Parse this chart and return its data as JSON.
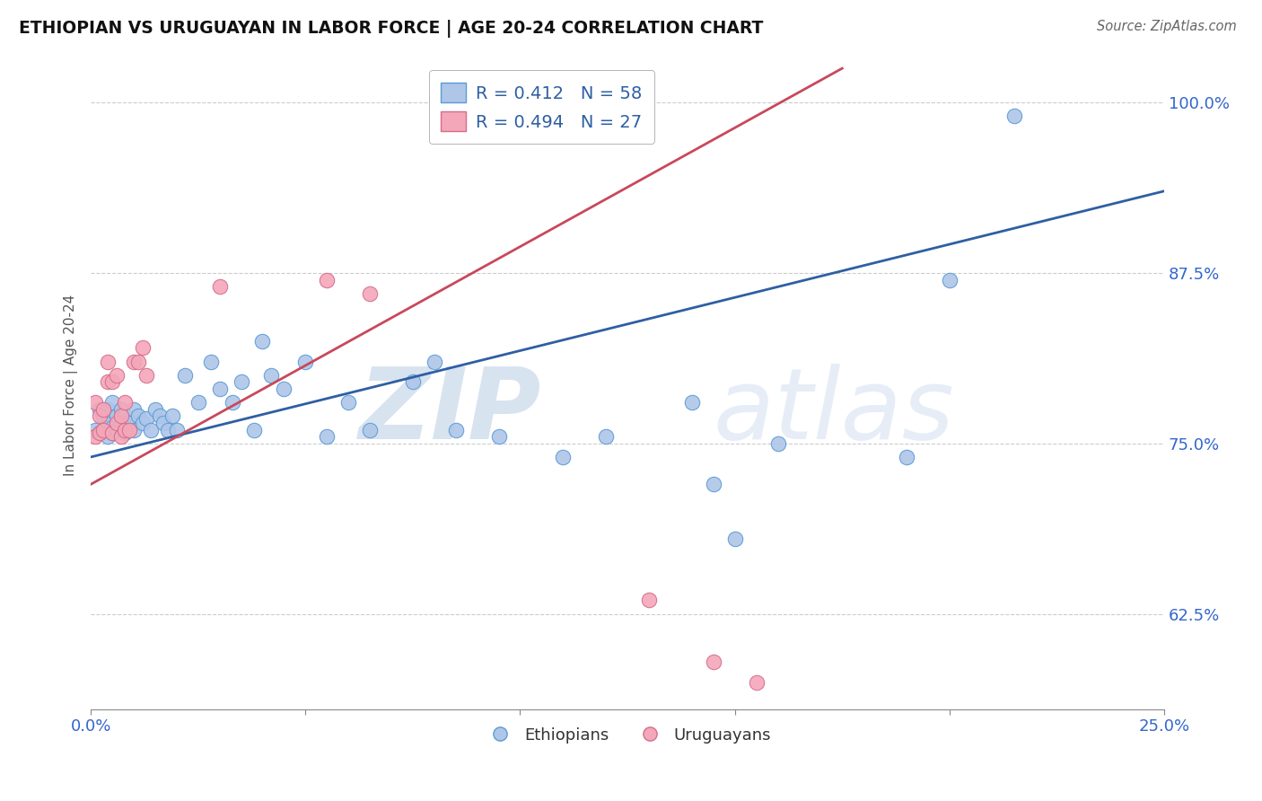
{
  "title": "ETHIOPIAN VS URUGUAYAN IN LABOR FORCE | AGE 20-24 CORRELATION CHART",
  "source": "Source: ZipAtlas.com",
  "ylabel": "In Labor Force | Age 20-24",
  "xlim": [
    0.0,
    0.25
  ],
  "ylim": [
    0.555,
    1.03
  ],
  "xticks": [
    0.0,
    0.05,
    0.1,
    0.15,
    0.2,
    0.25
  ],
  "xticklabels": [
    "0.0%",
    "",
    "",
    "",
    "",
    "25.0%"
  ],
  "yticks": [
    0.625,
    0.75,
    0.875,
    1.0
  ],
  "yticklabels": [
    "62.5%",
    "75.0%",
    "87.5%",
    "100.0%"
  ],
  "ethiopian_color": "#aec6e8",
  "uruguayan_color": "#f4a7b9",
  "ethiopian_edge": "#5b9bd5",
  "uruguayan_edge": "#d46e8a",
  "trend_blue": "#2e5fa3",
  "trend_pink": "#c9485b",
  "watermark": "ZIPatlas",
  "bg_color": "#ffffff",
  "grid_color": "#cccccc",
  "eth_x": [
    0.001,
    0.002,
    0.002,
    0.003,
    0.003,
    0.004,
    0.004,
    0.004,
    0.005,
    0.005,
    0.005,
    0.006,
    0.006,
    0.007,
    0.007,
    0.008,
    0.008,
    0.008,
    0.009,
    0.01,
    0.01,
    0.011,
    0.012,
    0.013,
    0.014,
    0.015,
    0.016,
    0.017,
    0.018,
    0.019,
    0.02,
    0.022,
    0.025,
    0.028,
    0.03,
    0.033,
    0.035,
    0.038,
    0.04,
    0.042,
    0.045,
    0.05,
    0.055,
    0.06,
    0.065,
    0.075,
    0.08,
    0.085,
    0.095,
    0.11,
    0.12,
    0.14,
    0.145,
    0.15,
    0.16,
    0.19,
    0.2,
    0.215
  ],
  "eth_y": [
    0.76,
    0.758,
    0.775,
    0.77,
    0.76,
    0.765,
    0.755,
    0.775,
    0.758,
    0.762,
    0.78,
    0.77,
    0.76,
    0.775,
    0.765,
    0.758,
    0.77,
    0.762,
    0.765,
    0.76,
    0.775,
    0.77,
    0.765,
    0.768,
    0.76,
    0.775,
    0.77,
    0.765,
    0.76,
    0.77,
    0.76,
    0.8,
    0.78,
    0.81,
    0.79,
    0.78,
    0.795,
    0.76,
    0.825,
    0.8,
    0.79,
    0.81,
    0.755,
    0.78,
    0.76,
    0.795,
    0.81,
    0.76,
    0.755,
    0.74,
    0.755,
    0.78,
    0.72,
    0.68,
    0.75,
    0.74,
    0.87,
    0.99
  ],
  "uru_x": [
    0.001,
    0.001,
    0.002,
    0.002,
    0.003,
    0.003,
    0.004,
    0.004,
    0.005,
    0.005,
    0.006,
    0.006,
    0.007,
    0.007,
    0.008,
    0.008,
    0.009,
    0.01,
    0.011,
    0.012,
    0.013,
    0.03,
    0.055,
    0.065,
    0.13,
    0.145,
    0.155
  ],
  "uru_y": [
    0.755,
    0.78,
    0.77,
    0.758,
    0.76,
    0.775,
    0.795,
    0.81,
    0.758,
    0.795,
    0.8,
    0.765,
    0.77,
    0.755,
    0.76,
    0.78,
    0.76,
    0.81,
    0.81,
    0.82,
    0.8,
    0.865,
    0.87,
    0.86,
    0.635,
    0.59,
    0.575
  ],
  "eth_trend_x": [
    0.0,
    0.25
  ],
  "eth_trend_y": [
    0.74,
    0.935
  ],
  "uru_trend_x": [
    0.0,
    0.175
  ],
  "uru_trend_y": [
    0.72,
    1.025
  ]
}
